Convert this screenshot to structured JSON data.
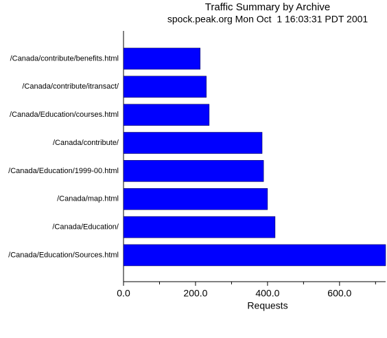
{
  "chart_data": {
    "type": "hbar",
    "title": "Traffic Summary by Archive",
    "subtitle": "spock.peak.org Mon Oct  1 16:03:31 PDT 2001",
    "xlabel": "Requests",
    "categories": [
      "/Canada/contribute/benefits.html",
      "/Canada/contribute/itransact/",
      "/Canada/Education/courses.html",
      "/Canada/contribute/",
      "/Canada/Education/1999-00.html",
      "/Canada/map.html",
      "/Canada/Education/",
      "/Canada/Education/Sources.html"
    ],
    "values": [
      213,
      230,
      238,
      385,
      389,
      400,
      421,
      728
    ],
    "color": "#0000ff",
    "xlim": [
      0,
      728
    ],
    "xticks": [
      {
        "value": 0,
        "label": "0.0"
      },
      {
        "value": 200,
        "label": "200.0"
      },
      {
        "value": 400,
        "label": "400.0"
      },
      {
        "value": 600,
        "label": "600.0"
      }
    ],
    "minor_xticks": [
      100,
      300,
      500,
      700
    ]
  }
}
